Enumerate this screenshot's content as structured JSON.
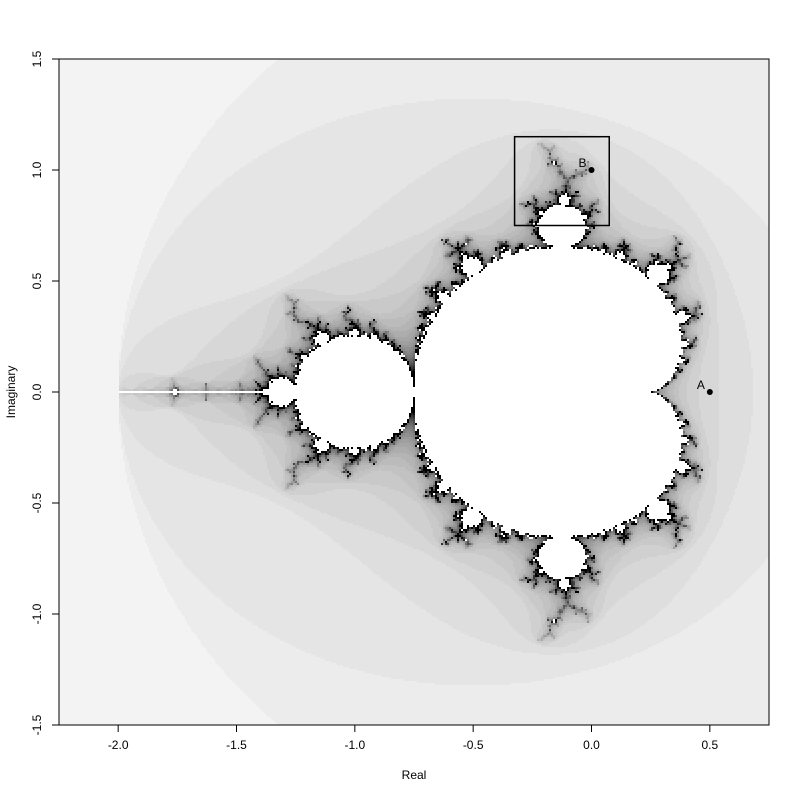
{
  "chart_data": {
    "type": "mandelbrot",
    "x_label": "Real",
    "y_label": "Imaginary",
    "xlim": [
      -2.25,
      0.75
    ],
    "ylim": [
      -1.5,
      1.5
    ],
    "xticks": [
      {
        "value": -2,
        "label": "-2.0"
      },
      {
        "value": -1.5,
        "label": "-1.5"
      },
      {
        "value": -1,
        "label": "-1.0"
      },
      {
        "value": -0.5,
        "label": "-0.5"
      },
      {
        "value": 0,
        "label": "0.0"
      },
      {
        "value": 0.5,
        "label": "0.5"
      }
    ],
    "yticks": [
      {
        "value": -1.5,
        "label": "-1.5"
      },
      {
        "value": -1,
        "label": "-1.0"
      },
      {
        "value": -0.5,
        "label": "-0.5"
      },
      {
        "value": 0,
        "label": "0.0"
      },
      {
        "value": 0.5,
        "label": "0.5"
      },
      {
        "value": 1,
        "label": "1.0"
      },
      {
        "value": 1.5,
        "label": "1.5"
      }
    ],
    "points": [
      {
        "label": "A",
        "x": 0.5,
        "y": 0
      },
      {
        "label": "B",
        "x": 0,
        "y": 1
      }
    ],
    "box": {
      "x": [
        -0.325,
        0.075
      ],
      "y": [
        0.75,
        1.15
      ]
    },
    "color": "#000000"
  }
}
